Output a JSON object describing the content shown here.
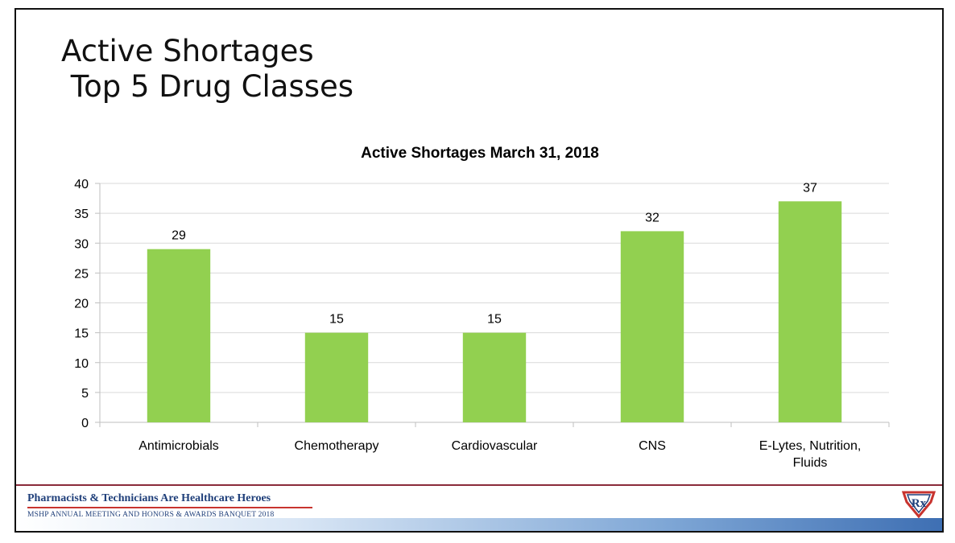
{
  "slide": {
    "title_line1": "Active Shortages",
    "title_line2": " Top 5 Drug Classes"
  },
  "chart_data": {
    "type": "bar",
    "title": "Active Shortages March 31, 2018",
    "categories": [
      "Antimicrobials",
      "Chemotherapy",
      "Cardiovascular",
      "CNS",
      "E-Lytes, Nutrition, Fluids"
    ],
    "category_lines": [
      [
        "Antimicrobials"
      ],
      [
        "Chemotherapy"
      ],
      [
        "Cardiovascular"
      ],
      [
        "CNS"
      ],
      [
        "E-Lytes, Nutrition,",
        "Fluids"
      ]
    ],
    "values": [
      29,
      15,
      15,
      32,
      37
    ],
    "ylim": [
      0,
      40
    ],
    "yticks": [
      0,
      5,
      10,
      15,
      20,
      25,
      30,
      35,
      40
    ],
    "grid": true,
    "data_labels": true,
    "legend": "none",
    "bar_color": "#92d050"
  },
  "footer": {
    "tagline": "Pharmacists & Technicians Are Healthcare Heroes",
    "event": "MSHP ANNUAL MEETING AND HONORS & AWARDS BANQUET 2018",
    "logo_text": "Rx",
    "accent_color": "#c8342f",
    "brand_color": "#1f3f7a"
  }
}
